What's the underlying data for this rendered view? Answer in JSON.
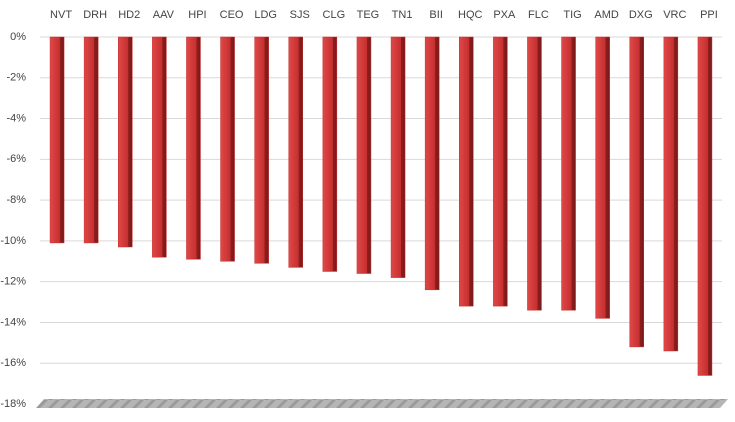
{
  "chart_data": {
    "type": "bar",
    "categories": [
      "NVT",
      "DRH",
      "HD2",
      "AAV",
      "HPI",
      "CEO",
      "LDG",
      "SJS",
      "CLG",
      "TEG",
      "TN1",
      "BII",
      "HQC",
      "PXA",
      "FLC",
      "TIG",
      "AMD",
      "DXG",
      "VRC",
      "PPI"
    ],
    "values": [
      -10.1,
      -10.1,
      -10.3,
      -10.8,
      -10.9,
      -11.0,
      -11.1,
      -11.3,
      -11.5,
      -11.6,
      -11.8,
      -12.4,
      -13.2,
      -13.2,
      -13.4,
      -13.4,
      -13.8,
      -15.2,
      -15.4,
      -16.6
    ],
    "color": "#c62f2f",
    "ylim": [
      -18,
      0
    ],
    "yticks": [
      {
        "value": 0,
        "label": "0%"
      },
      {
        "value": -2,
        "label": "-2%"
      },
      {
        "value": -4,
        "label": "-4%"
      },
      {
        "value": -6,
        "label": "-6%"
      },
      {
        "value": -8,
        "label": "-8%"
      },
      {
        "value": -10,
        "label": "-10%"
      },
      {
        "value": -12,
        "label": "-12%"
      },
      {
        "value": -14,
        "label": "-14%"
      },
      {
        "value": -16,
        "label": "-16%"
      },
      {
        "value": -18,
        "label": "-18%"
      }
    ],
    "grid": true
  }
}
